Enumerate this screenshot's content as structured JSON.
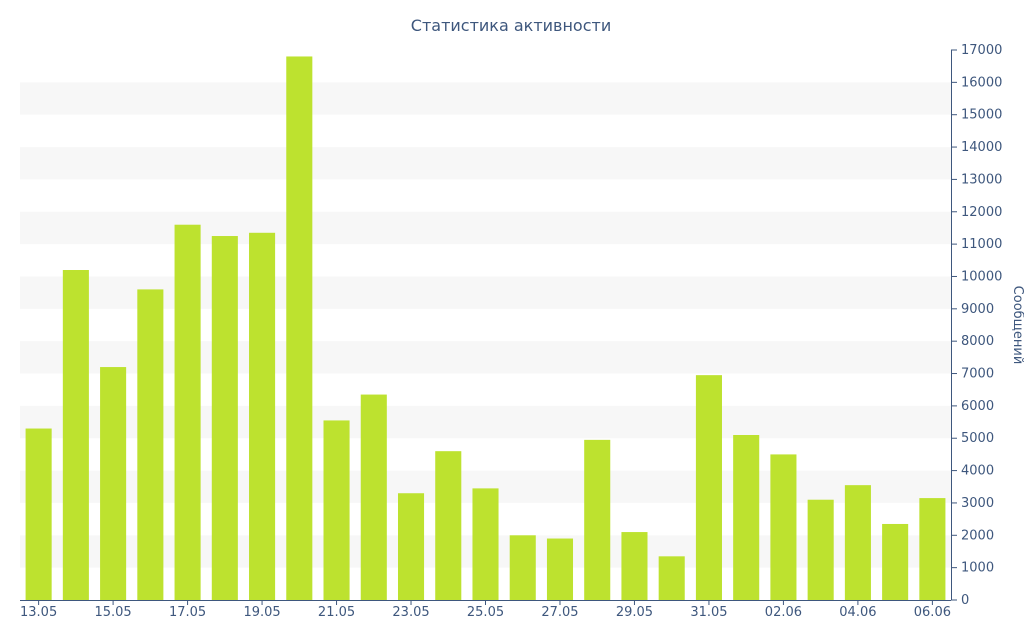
{
  "chart_data": {
    "type": "bar",
    "title": "Статистика активности",
    "xlabel": "",
    "ylabel": "Сообщений",
    "categories": [
      "13.05",
      "14.05",
      "15.05",
      "16.05",
      "17.05",
      "18.05",
      "19.05",
      "20.05",
      "21.05",
      "22.05",
      "23.05",
      "24.05",
      "25.05",
      "26.05",
      "27.05",
      "28.05",
      "29.05",
      "30.05",
      "31.05",
      "01.06",
      "02.06",
      "03.06",
      "04.06",
      "05.06",
      "06.06"
    ],
    "x_tick_labels": [
      "13.05",
      "15.05",
      "17.05",
      "19.05",
      "21.05",
      "23.05",
      "25.05",
      "27.05",
      "29.05",
      "31.05",
      "02.06",
      "04.06",
      "06.06"
    ],
    "values": [
      5300,
      10200,
      7200,
      9600,
      11600,
      11250,
      11350,
      16800,
      5550,
      6350,
      3300,
      4600,
      3450,
      2000,
      1900,
      4950,
      2100,
      1350,
      6950,
      5100,
      4500,
      3100,
      3550,
      2350,
      3150
    ],
    "y_ticks": [
      "0",
      "1000",
      "2000",
      "3000",
      "4000",
      "5000",
      "6000",
      "7000",
      "8000",
      "9000",
      "10000",
      "11000",
      "12000",
      "13000",
      "14000",
      "15000",
      "16000",
      "17000"
    ],
    "ylim": [
      0,
      17000
    ],
    "y_axis_side": "right",
    "grid": "alternating horizontal bands",
    "legend": "none",
    "colors": {
      "bar": "#bde22f",
      "band": "#f7f7f7",
      "axis": "#3e577d",
      "text": "#3e577d"
    }
  }
}
